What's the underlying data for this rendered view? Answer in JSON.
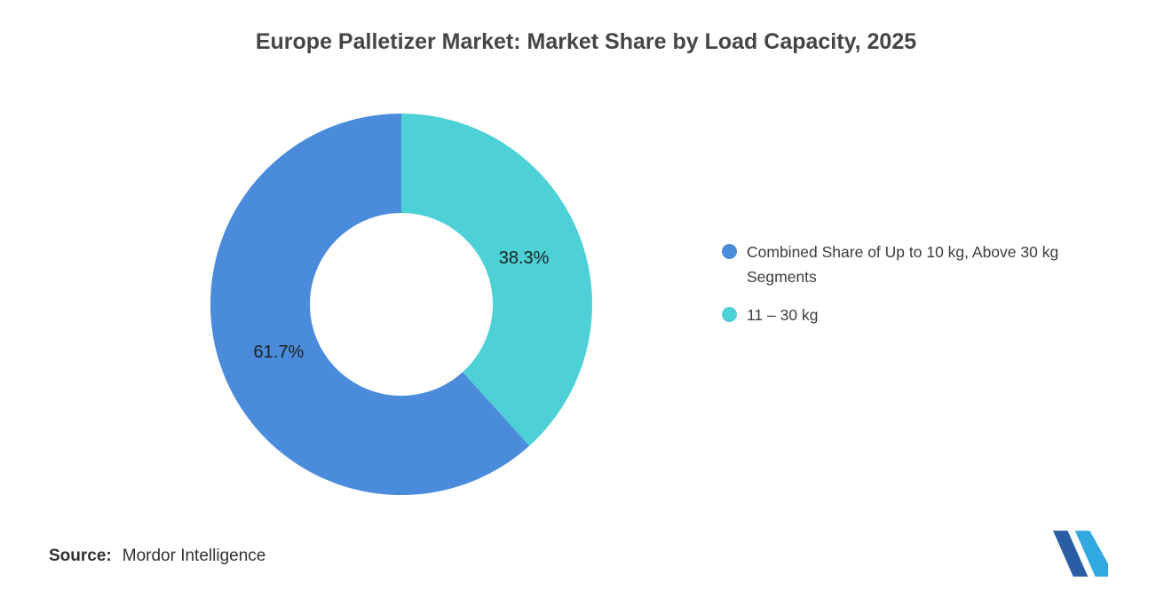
{
  "title": "Europe Palletizer Market: Market Share by Load Capacity, 2025",
  "source": {
    "label": "Source:",
    "value": "Mordor Intelligence"
  },
  "legend": {
    "items": [
      {
        "label": "Combined Share of Up to 10 kg, Above 30 kg Segments",
        "color": "#4A8BDB"
      },
      {
        "label": "11 – 30 kg",
        "color": "#4DD1D6"
      }
    ]
  },
  "chart_data": {
    "type": "pie",
    "subtype": "donut",
    "title": "Europe Palletizer Market: Market Share by Load Capacity, 2025",
    "units": "%",
    "start_angle_deg_clockwise_from_top": 0,
    "legend_position": "right",
    "slices": [
      {
        "label": "11 – 30 kg",
        "value": 38.3,
        "display": "38.3%",
        "color": "#4DD1D6"
      },
      {
        "label": "Combined Share of Up to 10 kg, Above 30 kg Segments",
        "value": 61.7,
        "display": "61.7%",
        "color": "#4A8BDB"
      }
    ],
    "colors": {
      "blue": "#4A8BDB",
      "teal": "#4DD1D6"
    }
  }
}
